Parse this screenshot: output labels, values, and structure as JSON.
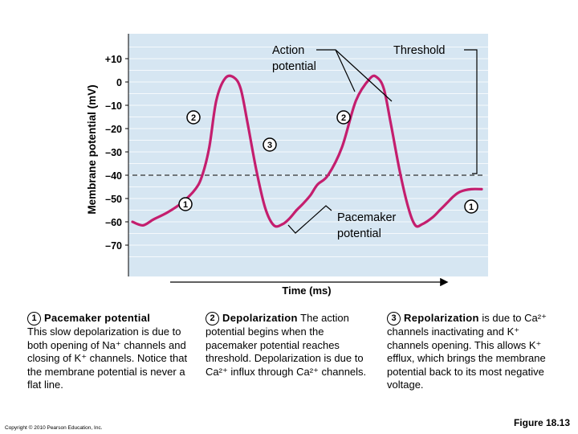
{
  "colors": {
    "plot_bg": "#d6e6f2",
    "grid": "#ffffff",
    "curve": "#c41e6e",
    "annotation": "#000000"
  },
  "chart_data": {
    "type": "line",
    "xlabel": "Time (ms)",
    "ylabel": "Membrane potential (mV)",
    "ytick_labels": [
      "+10",
      "0",
      "–10",
      "–20",
      "–30",
      "–40",
      "–50",
      "–60",
      "–70"
    ],
    "ylim": [
      -75,
      17
    ],
    "xlim": [
      0,
      100
    ],
    "threshold_mv": -40,
    "series": [
      {
        "x": [
          0,
          3,
          6,
          10,
          14,
          18,
          20,
          22,
          24,
          26.5,
          29,
          31,
          33,
          35.5,
          38,
          40.5,
          43,
          45,
          47,
          49,
          51,
          53,
          56,
          60,
          64,
          68,
          70,
          72,
          74,
          76.5,
          79,
          81,
          83,
          86,
          88,
          90,
          92,
          94,
          97,
          100
        ],
        "y": [
          -60,
          -61.5,
          -59,
          -56,
          -52,
          -46,
          -40,
          -28,
          -8,
          1.5,
          2,
          -3,
          -18,
          -38,
          -54,
          -61.5,
          -61,
          -58.5,
          -55,
          -52,
          -48.5,
          -44,
          -40,
          -28,
          -8,
          1.5,
          2,
          -3,
          -18,
          -38,
          -54,
          -61.5,
          -61,
          -58,
          -55,
          -52,
          -49,
          -47,
          -46,
          -46
        ]
      }
    ],
    "annotations": {
      "action_potential": "Action\npotential",
      "threshold": "Threshold",
      "pacemaker_potential": "Pacemaker\npotential",
      "markers": [
        "1",
        "2",
        "2",
        "3",
        "1",
        "1"
      ]
    }
  },
  "panels": [
    {
      "number": "1",
      "title": "Pacemaker potential",
      "body": "This slow depolarization is due to both opening of Na⁺ channels and closing of K⁺ channels. Notice that the membrane potential is never a flat line."
    },
    {
      "number": "2",
      "title": "Depolarization",
      "body": "The action potential begins when the pacemaker potential reaches threshold. Depolarization is due to Ca²⁺ influx through Ca²⁺ channels."
    },
    {
      "number": "3",
      "title": "Repolarization",
      "body": "is due to Ca²⁺ channels inactivating and K⁺ channels opening. This allows K⁺ efflux, which brings the membrane potential back to its most negative voltage."
    }
  ],
  "copyright": "Copyright © 2010 Pearson Education, Inc.",
  "figure_label": "Figure 18.13"
}
